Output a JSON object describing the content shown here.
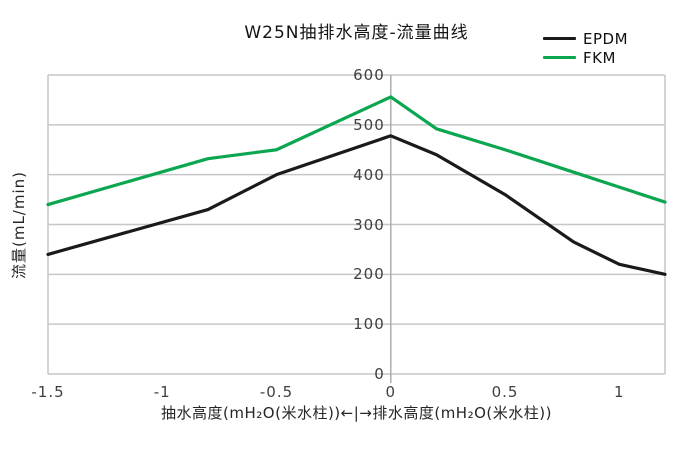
{
  "title": "W25N抽排水高度-流量曲线",
  "legend": [
    {
      "label": "EPDM",
      "color": "#1a1a1a"
    },
    {
      "label": "FKM",
      "color": "#0aa650"
    }
  ],
  "colors": {
    "grid": "#c6c6c6",
    "axis": "#adadad",
    "tick_text": "#3f3f3f"
  },
  "chart_data": {
    "type": "line",
    "title": "W25N抽排水高度-流量曲线",
    "x": [
      -1.5,
      -0.8,
      -0.5,
      0,
      0.2,
      0.5,
      0.8,
      1,
      1.2
    ],
    "series": [
      {
        "name": "EPDM",
        "color": "#1a1a1a",
        "values": [
          240,
          330,
          400,
          478,
          440,
          360,
          265,
          220,
          200
        ]
      },
      {
        "name": "FKM",
        "color": "#0aa650",
        "values": [
          340,
          432,
          450,
          556,
          492,
          450,
          405,
          375,
          345
        ]
      }
    ],
    "xlabel": "抽水高度(mH₂O(米水柱))←|→排水高度(mH₂O(米水柱))",
    "ylabel": "流量(mL/min)",
    "xlim": [
      -1.5,
      1.2
    ],
    "ylim": [
      0,
      600
    ],
    "x_ticks": [
      -1.5,
      -1,
      -0.5,
      0,
      0.5,
      1
    ],
    "x_tick_labels": [
      "-1.5",
      "-1",
      "-0.5",
      "0",
      "0.5",
      "1"
    ],
    "y_ticks": [
      0,
      100,
      200,
      300,
      400,
      500,
      600
    ],
    "y_tick_labels": [
      "0",
      "100",
      "200",
      "300",
      "400",
      "500",
      "600"
    ],
    "grid": "horizontal",
    "y_axis_position": "x=0",
    "legend_position": "top-right"
  }
}
